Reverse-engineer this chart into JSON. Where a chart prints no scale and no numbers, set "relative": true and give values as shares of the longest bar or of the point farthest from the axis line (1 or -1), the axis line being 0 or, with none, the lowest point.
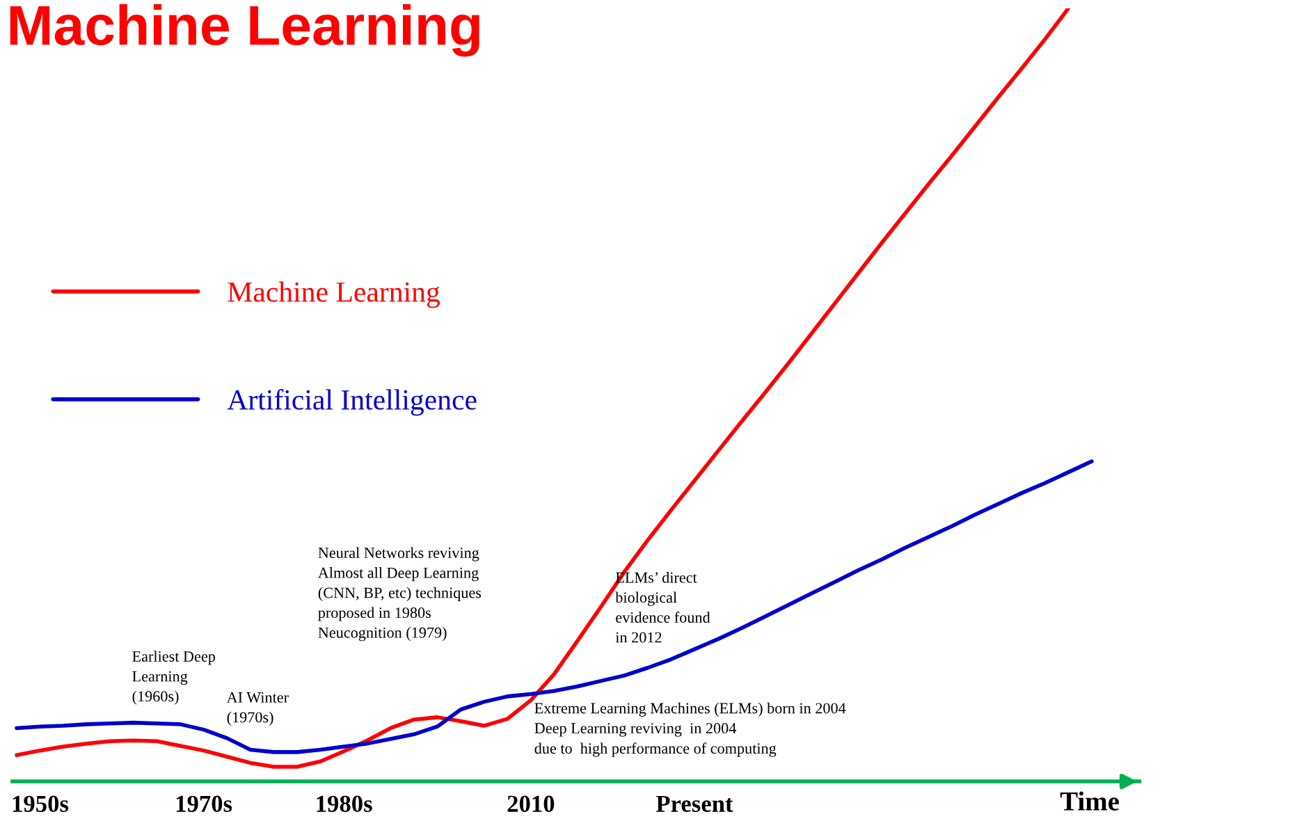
{
  "chart_data": {
    "type": "line",
    "title": "Machine Learning",
    "xlabel": "Time",
    "relative": true,
    "categories": [
      null,
      "1950s",
      null,
      null,
      null,
      null,
      null,
      null,
      "1970s",
      null,
      null,
      null,
      null,
      null,
      "1980s",
      null,
      null,
      null,
      null,
      null,
      null,
      null,
      "2010",
      null,
      null,
      null,
      null,
      null,
      null,
      "Present",
      null,
      null,
      null,
      null,
      null,
      null,
      null,
      null,
      null,
      null,
      null,
      null,
      null,
      null,
      null,
      null,
      null
    ],
    "legend": "center left",
    "grid": false,
    "marker": "none",
    "line_style": "solid",
    "series": [
      {
        "name": "Machine Learning",
        "color": "#ff0000",
        "values": [
          0.034,
          0.04,
          0.045,
          0.049,
          0.052,
          0.053,
          0.052,
          0.046,
          0.04,
          0.032,
          0.024,
          0.019,
          0.019,
          0.026,
          0.039,
          0.053,
          0.069,
          0.08,
          0.083,
          0.078,
          0.072,
          0.081,
          0.105,
          0.139,
          0.182,
          0.226,
          0.271,
          0.312,
          0.351,
          0.389,
          0.427,
          0.465,
          0.502,
          0.54,
          0.579,
          0.618,
          0.657,
          0.696,
          0.734,
          0.772,
          0.809,
          0.847,
          0.885,
          0.922,
          0.96,
          1.0,
          null
        ]
      },
      {
        "name": "Artificial Intelligence",
        "color": "#0000cc",
        "values": [
          0.069,
          0.071,
          0.072,
          0.074,
          0.075,
          0.076,
          0.075,
          0.074,
          0.067,
          0.056,
          0.041,
          0.038,
          0.038,
          0.041,
          0.045,
          0.049,
          0.055,
          0.061,
          0.071,
          0.093,
          0.103,
          0.11,
          0.113,
          0.117,
          0.123,
          0.13,
          0.137,
          0.147,
          0.158,
          0.171,
          0.184,
          0.198,
          0.213,
          0.228,
          0.243,
          0.258,
          0.273,
          0.287,
          0.302,
          0.316,
          0.33,
          0.345,
          0.359,
          0.373,
          0.386,
          0.4,
          0.414
        ]
      }
    ],
    "annotations": [
      "Earliest Deep\nLearning\n(1960s)",
      "AI Winter\n(1970s)",
      "Neural Networks reviving\nAlmost all Deep Learning\n(CNN, BP, etc) techniques\nproposed in 1980s\nNeucognition (1979)",
      "ELMs’ direct\nbiological\nevidence found\nin 2012",
      "Extreme Learning Machines (ELMs) born in 2004\nDeep Learning reviving  in 2004\ndue to  high performance of computing"
    ]
  }
}
